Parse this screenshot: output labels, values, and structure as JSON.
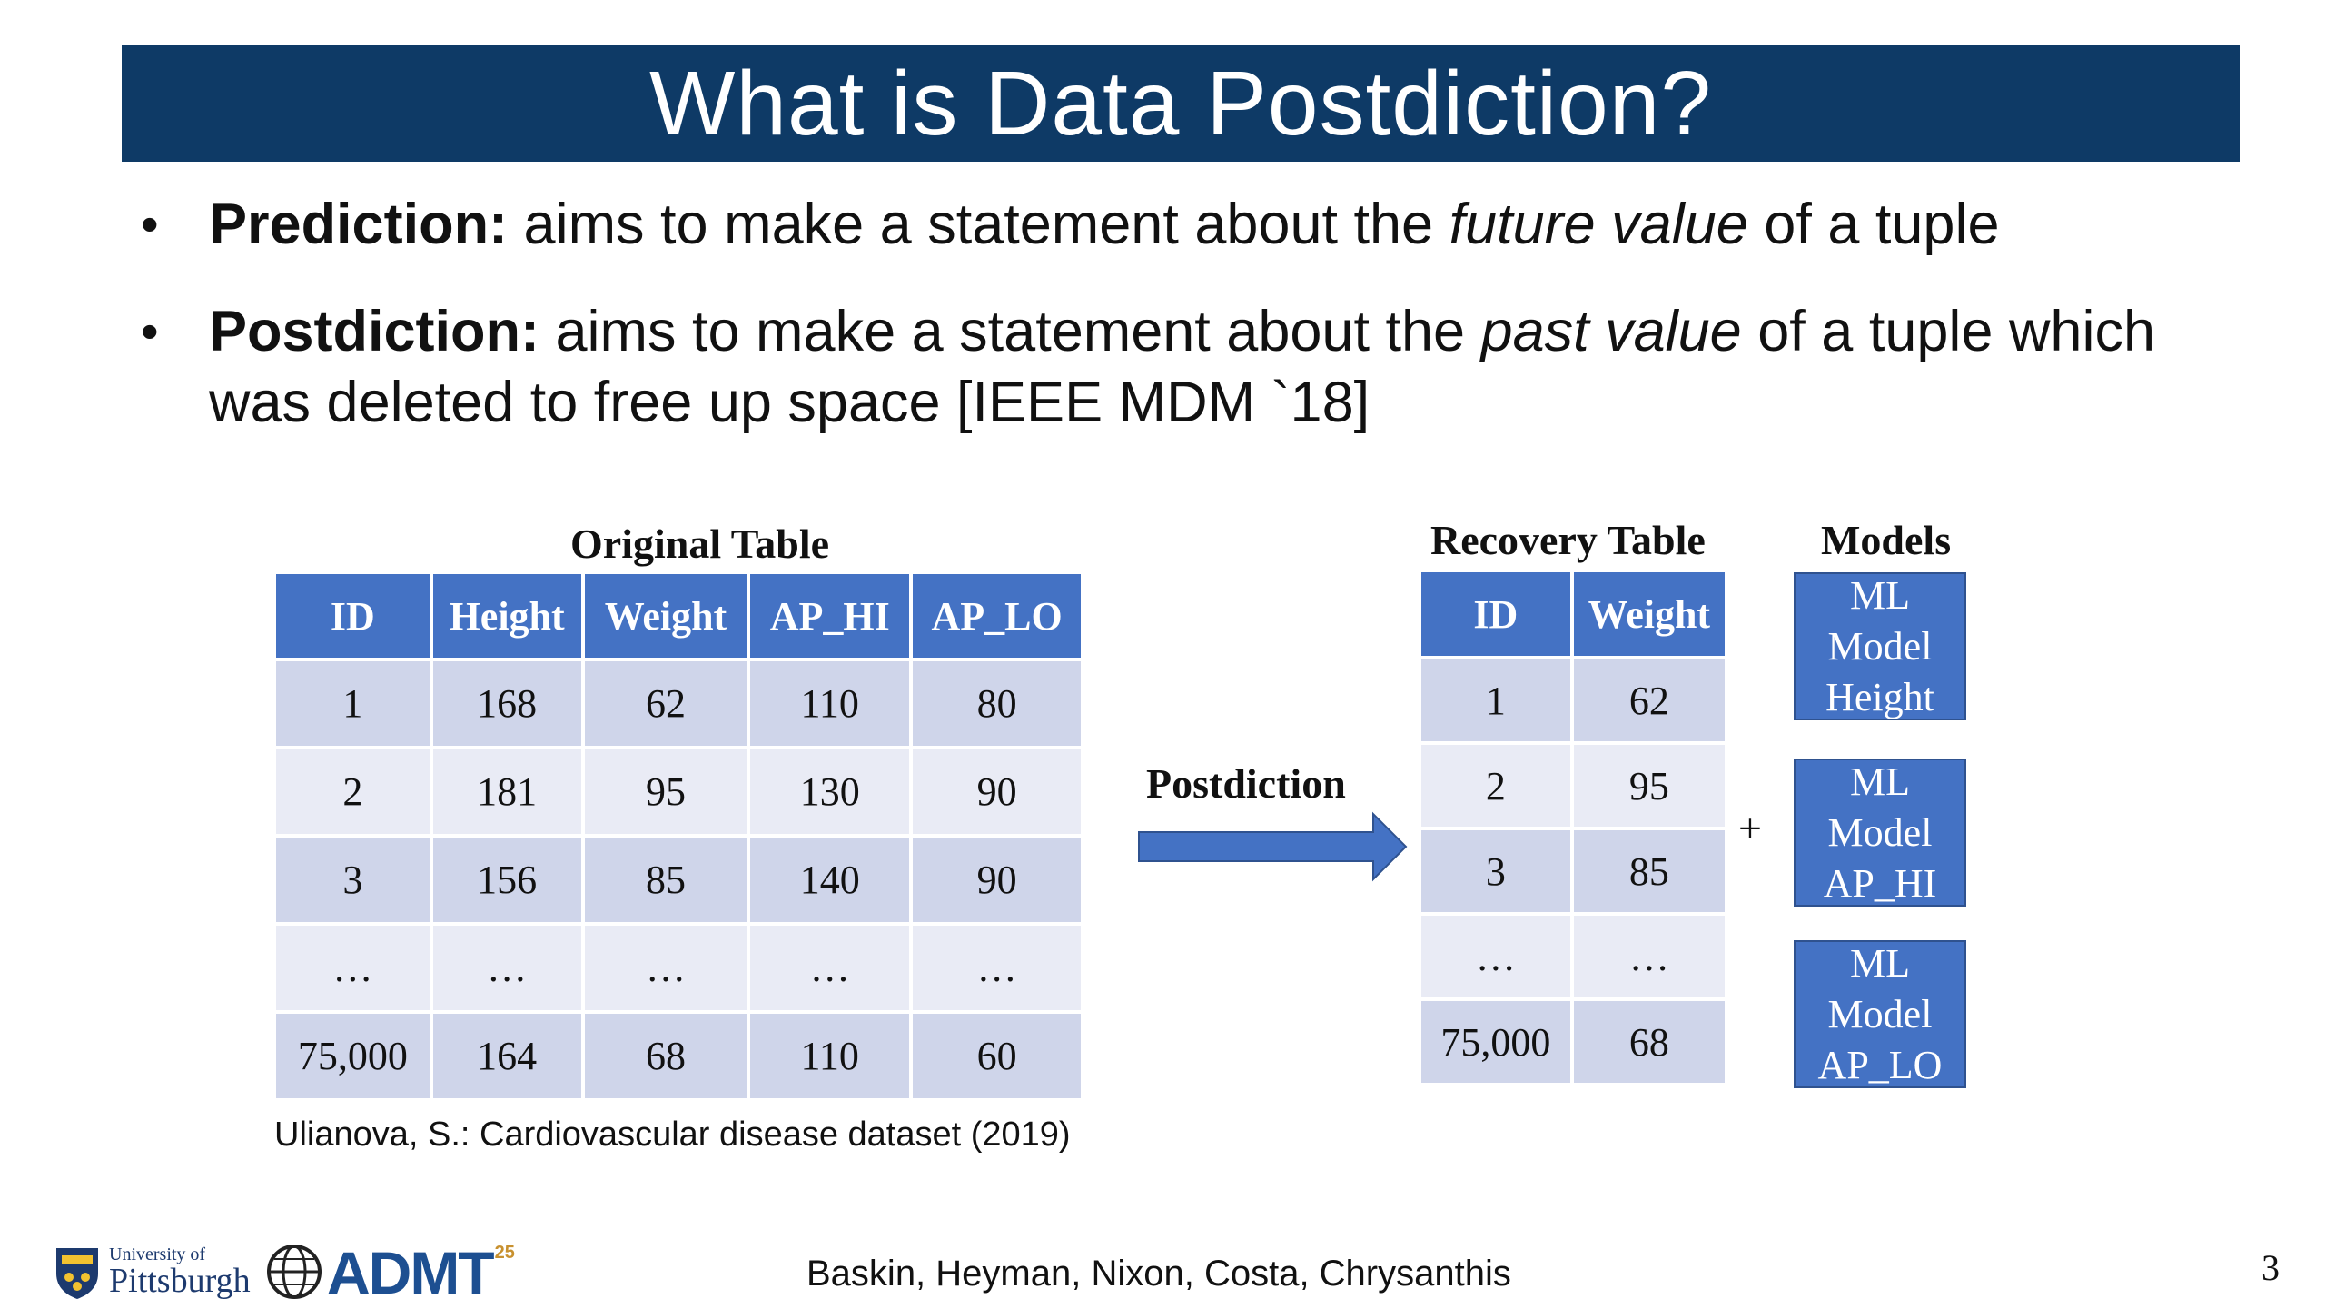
{
  "slide": {
    "title": "What is Data Postdiction?",
    "page_number": "3",
    "footer_authors": "Baskin, Heyman, Nixon, Costa, Chrysanthis"
  },
  "bullets": [
    {
      "term": "Prediction:",
      "pre": " aims to make a statement about the ",
      "italic": "future value",
      "post": " of a tuple"
    },
    {
      "term": "Postdiction:",
      "pre": " aims to make a statement about the ",
      "italic": "past value",
      "post": " of a tuple which was deleted to free up space [IEEE MDM `18]"
    }
  ],
  "original_table": {
    "caption": "Original Table",
    "headers": [
      "ID",
      "Height",
      "Weight",
      "AP_HI",
      "AP_LO"
    ],
    "rows": [
      [
        "1",
        "168",
        "62",
        "110",
        "80"
      ],
      [
        "2",
        "181",
        "95",
        "130",
        "90"
      ],
      [
        "3",
        "156",
        "85",
        "140",
        "90"
      ],
      [
        "…",
        "…",
        "…",
        "…",
        "…"
      ],
      [
        "75,000",
        "164",
        "68",
        "110",
        "60"
      ]
    ],
    "citation": "Ulianova, S.: Cardiovascular disease dataset (2019)"
  },
  "arrow": {
    "label": "Postdiction",
    "color": "#4472c4"
  },
  "recovery_table": {
    "caption": "Recovery Table",
    "headers": [
      "ID",
      "Weight"
    ],
    "rows": [
      [
        "1",
        "62"
      ],
      [
        "2",
        "95"
      ],
      [
        "3",
        "85"
      ],
      [
        "…",
        "…"
      ],
      [
        "75,000",
        "68"
      ]
    ]
  },
  "plus_sign": "+",
  "models": {
    "caption": "Models",
    "items": [
      {
        "line1": "ML",
        "line2": "Model",
        "line3": "Height"
      },
      {
        "line1": "ML",
        "line2": "Model",
        "line3": "AP_HI"
      },
      {
        "line1": "ML",
        "line2": "Model",
        "line3": "AP_LO"
      }
    ]
  },
  "logos": {
    "pitt_small": "University of",
    "pitt_big": "Pittsburgh",
    "admt": "ADMT",
    "admt_sup": "25"
  },
  "colors": {
    "title_bar": "#0e3a66",
    "header_blue": "#4472c4",
    "row_dark": "#cfd5ea",
    "row_light": "#e9ebf5"
  }
}
